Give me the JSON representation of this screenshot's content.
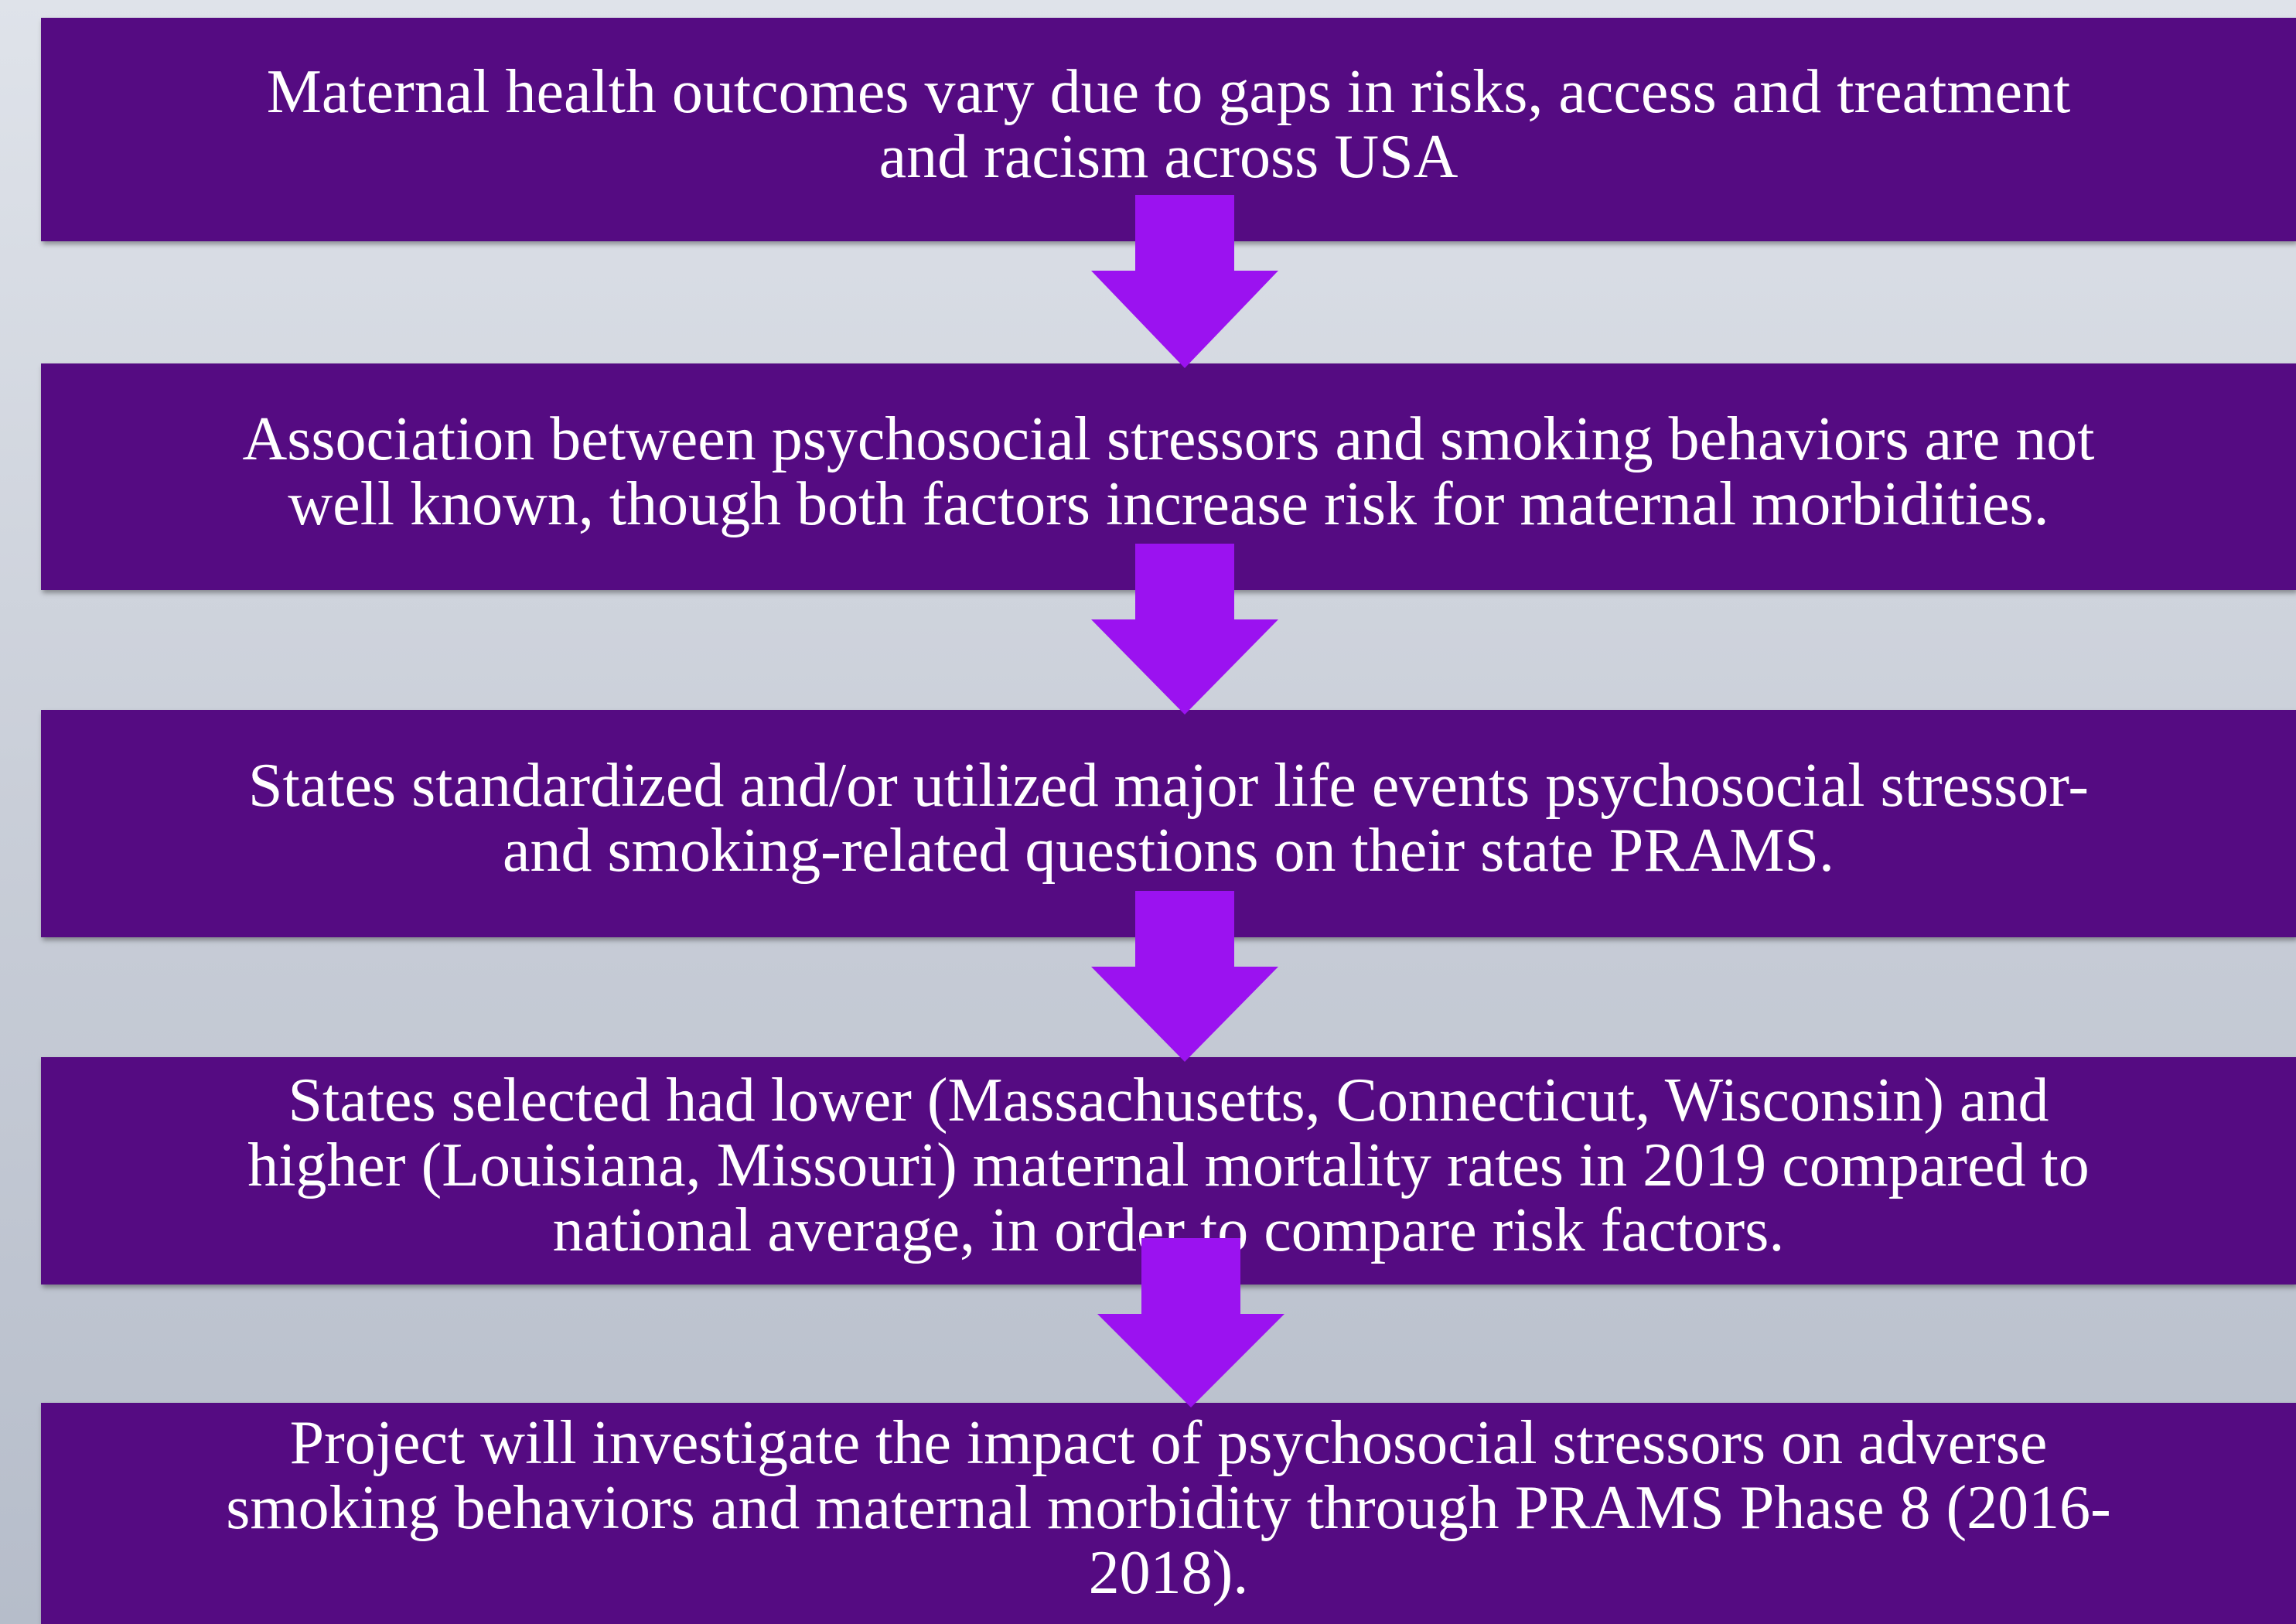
{
  "nodes": [
    {
      "lines": [
        "Maternal health outcomes vary due to gaps in risks, access and treatment",
        "and racism across USA"
      ]
    },
    {
      "lines": [
        "Association between psychosocial stressors and smoking behaviors are not",
        "well known, though both factors increase risk for maternal morbidities."
      ]
    },
    {
      "lines": [
        "States standardized and/or utilized major life events psychosocial stressor-",
        "and smoking-related questions on their state PRAMS."
      ]
    },
    {
      "lines": [
        "States selected had lower (Massachusetts, Connecticut, Wisconsin) and",
        "higher (Louisiana, Missouri) maternal mortality rates in 2019 compared to",
        "national average, in order to compare risk factors."
      ]
    },
    {
      "lines": [
        "Project will investigate the impact of psychosocial stressors on adverse",
        "smoking behaviors and maternal morbidity through PRAMS Phase 8 (2016-",
        "2018)."
      ]
    }
  ]
}
